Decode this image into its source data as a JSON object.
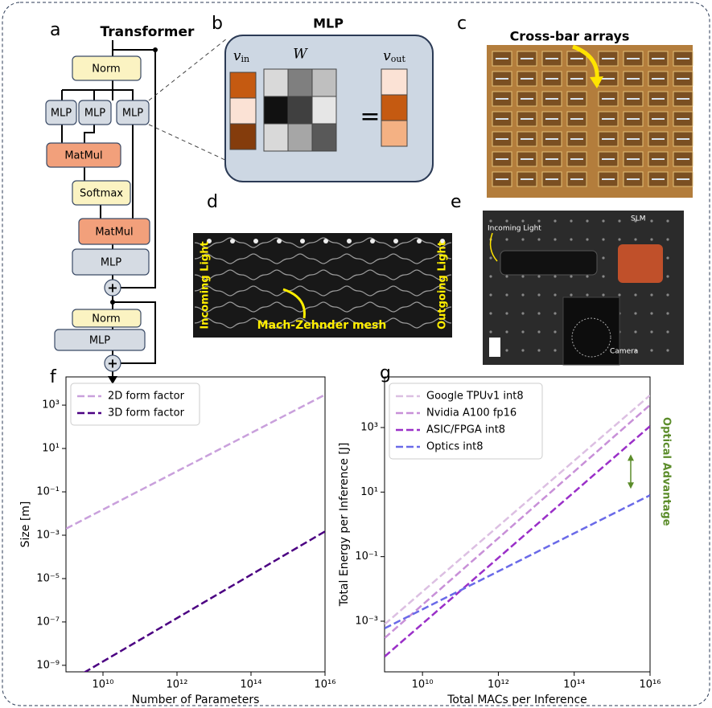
{
  "panel_labels": [
    "a",
    "b",
    "c",
    "d",
    "e",
    "f",
    "g"
  ],
  "transformer": {
    "title": "Transformer",
    "norm1": "Norm",
    "mlp_heads": [
      "MLP",
      "MLP",
      "MLP"
    ],
    "matmul1": "MatMul",
    "softmax": "Softmax",
    "matmul2": "MatMul",
    "mlp1": "MLP",
    "add1": "+",
    "norm2": "Norm",
    "mlp2": "MLP",
    "add2": "+"
  },
  "mlp": {
    "title": "MLP",
    "input": {
      "symbol": "v",
      "subscript": "in"
    },
    "weights": "W",
    "equals": "=",
    "output": {
      "symbol": "v",
      "subscript": "out"
    }
  },
  "crossbar": {
    "title": "Cross-bar arrays"
  },
  "mzi": {
    "incoming": "Incoming Light",
    "outgoing": "Outgoing Light",
    "mesh": "Mach-Zehnder mesh"
  },
  "free_space": {
    "incoming": "Incoming Light",
    "slm": "SLM",
    "camera": "Camera"
  },
  "chart_data": [
    {
      "type": "line",
      "xlabel": "Number of Parameters",
      "ylabel": "Size [m]",
      "xscale": "log",
      "yscale": "log",
      "x": [
        1000000000.0,
        1e+16
      ],
      "xlim": [
        1000000000.0,
        1e+16
      ],
      "ylim": [
        5e-10,
        20000.0
      ],
      "xticks": [
        {
          "value": 10000000000.0,
          "label": "10¹⁰"
        },
        {
          "value": 1000000000000.0,
          "label": "10¹²"
        },
        {
          "value": 100000000000000.0,
          "label": "10¹⁴"
        },
        {
          "value": 1e+16,
          "label": "10¹⁶"
        }
      ],
      "yticks": [
        {
          "value": 1000.0,
          "label": "10³"
        },
        {
          "value": 10,
          "label": "10¹"
        },
        {
          "value": 0.1,
          "label": "10⁻¹"
        },
        {
          "value": 0.001,
          "label": "10⁻³"
        },
        {
          "value": 1e-05,
          "label": "10⁻⁵"
        },
        {
          "value": 1e-07,
          "label": "10⁻⁷"
        },
        {
          "value": 1e-09,
          "label": "10⁻⁹"
        }
      ],
      "legend": "upper left",
      "line_style": "dashed",
      "series": [
        {
          "name": "2D form factor",
          "color": "#c9a0dc",
          "values": [
            0.002,
            3000.0
          ]
        },
        {
          "name": "3D form factor",
          "color": "#4b0082",
          "values": [
            1.5e-10,
            0.0015
          ]
        }
      ]
    },
    {
      "type": "line",
      "xlabel": "Total MACs per Inference",
      "ylabel": "Total Energy per Inference [J]",
      "xscale": "log",
      "yscale": "log",
      "x": [
        1000000000.0,
        1e+16
      ],
      "xlim": [
        1000000000.0,
        1e+16
      ],
      "ylim": [
        2.7e-05,
        37000.0
      ],
      "xticks": [
        {
          "value": 10000000000.0,
          "label": "10¹⁰"
        },
        {
          "value": 1000000000000.0,
          "label": "10¹²"
        },
        {
          "value": 100000000000000.0,
          "label": "10¹⁴"
        },
        {
          "value": 1e+16,
          "label": "10¹⁶"
        }
      ],
      "yticks": [
        {
          "value": 1000.0,
          "label": "10³"
        },
        {
          "value": 10,
          "label": "10¹"
        },
        {
          "value": 0.1,
          "label": "10⁻¹"
        },
        {
          "value": 0.001,
          "label": "10⁻³"
        }
      ],
      "legend": "upper left",
      "line_style": "dashed",
      "annotation": "Optical Advantage",
      "series": [
        {
          "name": "Google TPUv1 int8",
          "color": "#dcbfe2",
          "values": [
            0.0008,
            10000.0
          ]
        },
        {
          "name": "Nvidia A100 fp16",
          "color": "#c890d8",
          "values": [
            0.0003,
            5000.0
          ]
        },
        {
          "name": "ASIC/FPGA int8",
          "color": "#9a2fc8",
          "values": [
            8e-05,
            1100.0
          ]
        },
        {
          "name": "Optics int8",
          "color": "#6a6ae8",
          "values": [
            0.0006,
            8
          ]
        }
      ]
    }
  ]
}
